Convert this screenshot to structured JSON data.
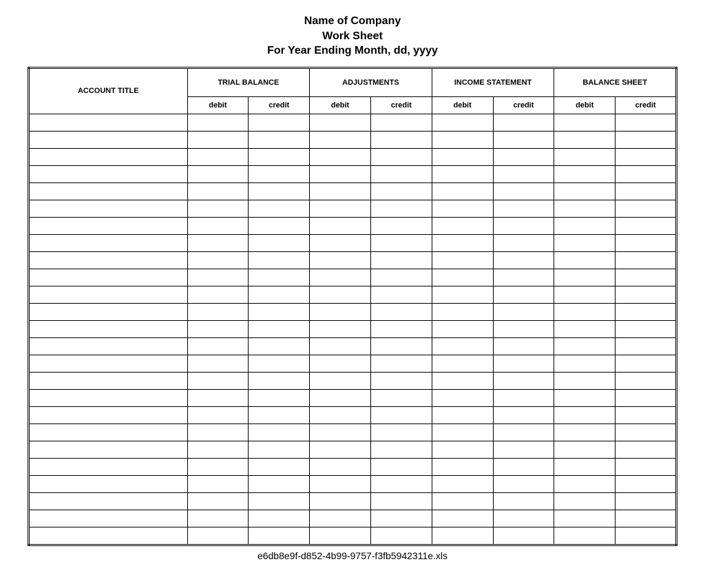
{
  "title": {
    "line1": "Name of Company",
    "line2": "Work Sheet",
    "line3": "For Year Ending Month, dd, yyyy",
    "font_size_pt": 15,
    "font_weight": "bold",
    "align": "center"
  },
  "table": {
    "columns": {
      "account_title": "ACCOUNT TITLE",
      "groups": [
        {
          "label": "TRIAL BALANCE",
          "sub": [
            "debit",
            "credit"
          ]
        },
        {
          "label": "ADJUSTMENTS",
          "sub": [
            "debit",
            "credit"
          ]
        },
        {
          "label": "INCOME STATEMENT",
          "sub": [
            "debit",
            "credit"
          ]
        },
        {
          "label": "BALANCE SHEET",
          "sub": [
            "debit",
            "credit"
          ]
        }
      ]
    },
    "header_font_size_pt": 11,
    "header_font_weight": "bold",
    "subheader_font_size_pt": 11,
    "body_rows": 25,
    "rows": [
      [
        "",
        "",
        "",
        "",
        "",
        "",
        "",
        "",
        ""
      ],
      [
        "",
        "",
        "",
        "",
        "",
        "",
        "",
        "",
        ""
      ],
      [
        "",
        "",
        "",
        "",
        "",
        "",
        "",
        "",
        ""
      ],
      [
        "",
        "",
        "",
        "",
        "",
        "",
        "",
        "",
        ""
      ],
      [
        "",
        "",
        "",
        "",
        "",
        "",
        "",
        "",
        ""
      ],
      [
        "",
        "",
        "",
        "",
        "",
        "",
        "",
        "",
        ""
      ],
      [
        "",
        "",
        "",
        "",
        "",
        "",
        "",
        "",
        ""
      ],
      [
        "",
        "",
        "",
        "",
        "",
        "",
        "",
        "",
        ""
      ],
      [
        "",
        "",
        "",
        "",
        "",
        "",
        "",
        "",
        ""
      ],
      [
        "",
        "",
        "",
        "",
        "",
        "",
        "",
        "",
        ""
      ],
      [
        "",
        "",
        "",
        "",
        "",
        "",
        "",
        "",
        ""
      ],
      [
        "",
        "",
        "",
        "",
        "",
        "",
        "",
        "",
        ""
      ],
      [
        "",
        "",
        "",
        "",
        "",
        "",
        "",
        "",
        ""
      ],
      [
        "",
        "",
        "",
        "",
        "",
        "",
        "",
        "",
        ""
      ],
      [
        "",
        "",
        "",
        "",
        "",
        "",
        "",
        "",
        ""
      ],
      [
        "",
        "",
        "",
        "",
        "",
        "",
        "",
        "",
        ""
      ],
      [
        "",
        "",
        "",
        "",
        "",
        "",
        "",
        "",
        ""
      ],
      [
        "",
        "",
        "",
        "",
        "",
        "",
        "",
        "",
        ""
      ],
      [
        "",
        "",
        "",
        "",
        "",
        "",
        "",
        "",
        ""
      ],
      [
        "",
        "",
        "",
        "",
        "",
        "",
        "",
        "",
        ""
      ],
      [
        "",
        "",
        "",
        "",
        "",
        "",
        "",
        "",
        ""
      ],
      [
        "",
        "",
        "",
        "",
        "",
        "",
        "",
        "",
        ""
      ],
      [
        "",
        "",
        "",
        "",
        "",
        "",
        "",
        "",
        ""
      ],
      [
        "",
        "",
        "",
        "",
        "",
        "",
        "",
        "",
        ""
      ],
      [
        "",
        "",
        "",
        "",
        "",
        "",
        "",
        "",
        ""
      ]
    ],
    "column_widths_pct": {
      "account_title": 24.5,
      "debit_credit_each": 9.4375
    },
    "border_color": "#000000",
    "outer_border_style": "double",
    "group_border_style": "double",
    "background_color": "#ffffff"
  },
  "footer": {
    "text": "e6db8e9f-d852-4b99-9757-f3fb5942311e.xls",
    "font_size_pt": 14,
    "align": "center"
  }
}
